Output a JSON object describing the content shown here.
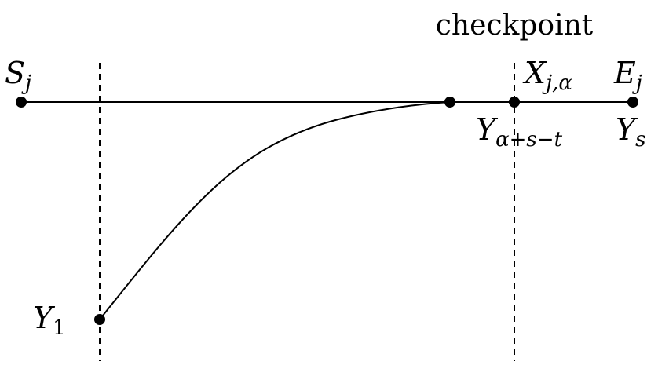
{
  "labels": {
    "checkpoint": "checkpoint",
    "S": "S",
    "S_sub": "j",
    "E": "E",
    "E_sub": "j",
    "X": "X",
    "X_sub": "j,α",
    "Y_mid": "Y",
    "Y_mid_sub": "α+s−t",
    "Y_end": "Y",
    "Y_end_sub": "s",
    "Y_start": "Y",
    "Y_start_sub": "1"
  }
}
